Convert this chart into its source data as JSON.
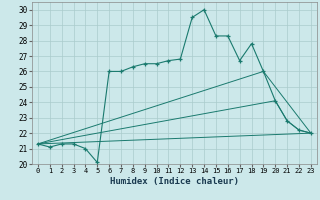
{
  "xlabel": "Humidex (Indice chaleur)",
  "bg_color": "#cce8ea",
  "grid_color": "#aacccc",
  "line_color": "#1a7a6e",
  "xlim": [
    -0.5,
    23.5
  ],
  "ylim": [
    20,
    30.5
  ],
  "xticks": [
    0,
    1,
    2,
    3,
    4,
    5,
    6,
    7,
    8,
    9,
    10,
    11,
    12,
    13,
    14,
    15,
    16,
    17,
    18,
    19,
    20,
    21,
    22,
    23
  ],
  "yticks": [
    20,
    21,
    22,
    23,
    24,
    25,
    26,
    27,
    28,
    29,
    30
  ],
  "curve_x": [
    0,
    1,
    2,
    3,
    4,
    5,
    6,
    7,
    8,
    9,
    10,
    11,
    12,
    13,
    14,
    15,
    16,
    17,
    18,
    19,
    20,
    21,
    22,
    23
  ],
  "curve_y": [
    21.3,
    21.1,
    21.3,
    21.3,
    21.0,
    20.1,
    26.0,
    26.0,
    26.3,
    26.5,
    26.5,
    26.7,
    26.8,
    29.5,
    30.0,
    28.3,
    28.3,
    26.7,
    27.8,
    26.0,
    24.1,
    22.8,
    22.2,
    22.0
  ],
  "line1_x": [
    0,
    23
  ],
  "line1_y": [
    21.3,
    22.0
  ],
  "line2_x": [
    0,
    19,
    23
  ],
  "line2_y": [
    21.3,
    26.0,
    22.0
  ],
  "line3_x": [
    0,
    20,
    21,
    22,
    23
  ],
  "line3_y": [
    21.3,
    24.1,
    22.8,
    22.2,
    22.0
  ]
}
